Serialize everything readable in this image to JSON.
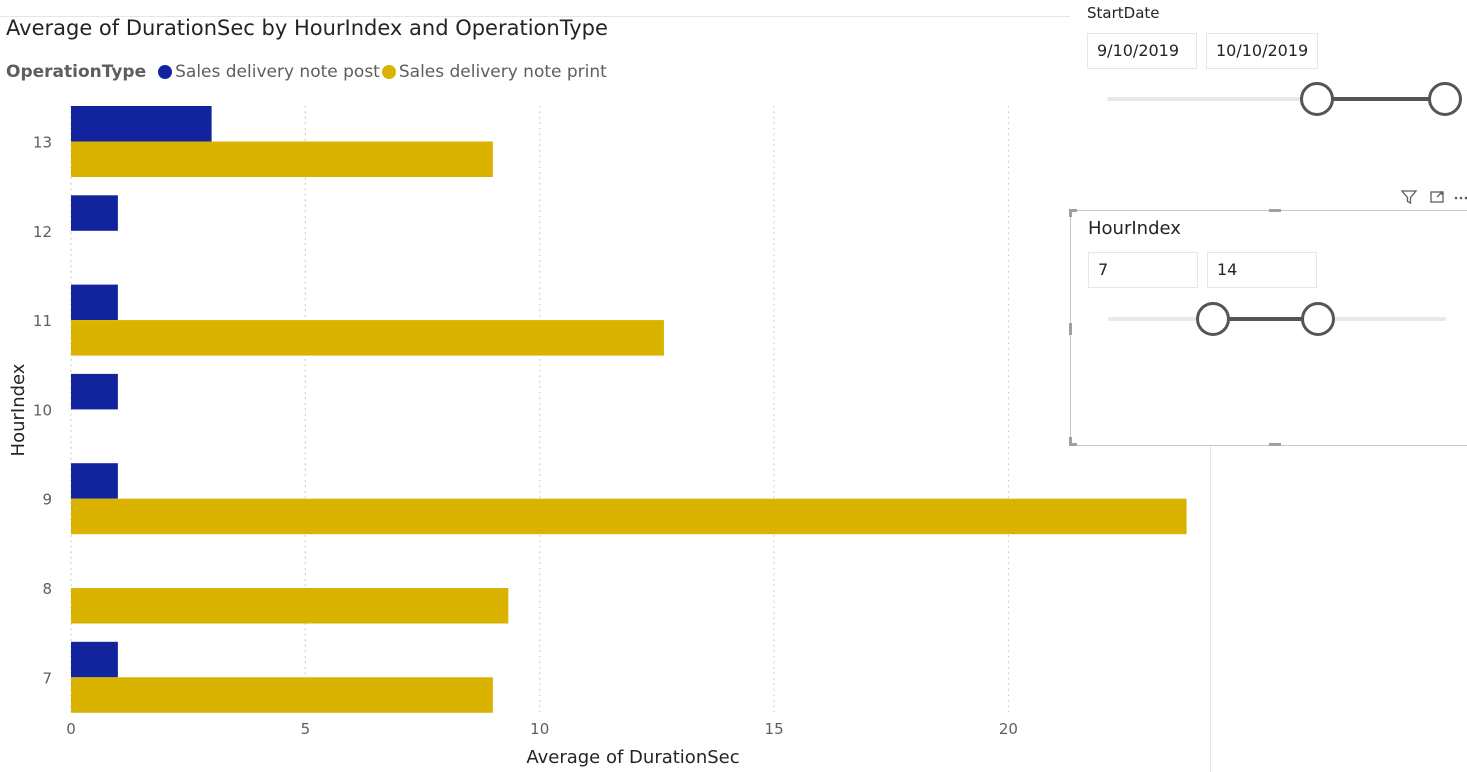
{
  "chart": {
    "title": "Average of DurationSec by HourIndex and OperationType",
    "legend_title": "OperationType"
  },
  "chart_data": {
    "type": "bar",
    "orientation": "horizontal",
    "title": "Average of DurationSec by HourIndex and OperationType",
    "xlabel": "Average of DurationSec",
    "ylabel": "HourIndex",
    "categories": [
      "13",
      "12",
      "11",
      "10",
      "9",
      "8",
      "7"
    ],
    "xlim": [
      0,
      24.3
    ],
    "xticks": [
      "0",
      "5",
      "10",
      "15",
      "20"
    ],
    "grid": "vertical dotted",
    "legend_title": "OperationType",
    "legend_position": "top-left",
    "series": [
      {
        "name": "Sales delivery note post",
        "color": "#12239e",
        "values": [
          3,
          1,
          1,
          1,
          1,
          null,
          1
        ]
      },
      {
        "name": "Sales delivery note print",
        "color": "#d9b300",
        "values": [
          9,
          null,
          12.65,
          null,
          23.8,
          9.33,
          9
        ]
      }
    ]
  },
  "start_date_slicer": {
    "header": "StartDate",
    "from_value": "9/10/2019",
    "to_value": "10/10/2019",
    "range_fraction": [
      0.62,
      1.0
    ]
  },
  "hour_slicer": {
    "header": "HourIndex",
    "from_value": "7",
    "to_value": "14",
    "range_fraction": [
      0.31,
      0.62
    ]
  },
  "header_icons": [
    "filter-icon",
    "focus-mode-icon",
    "more-options-icon"
  ]
}
